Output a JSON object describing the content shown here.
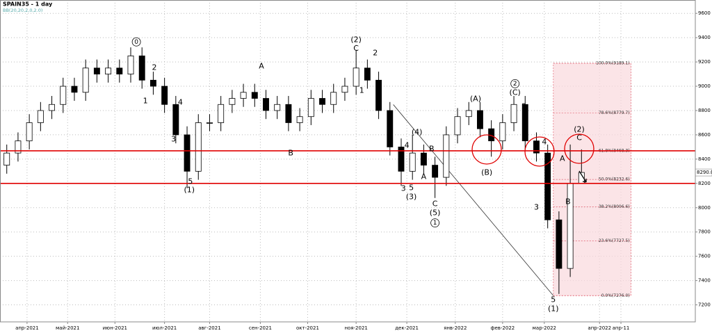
{
  "chart_data": {
    "type": "candlestick",
    "title": "SPAIN35 - 1 day",
    "subtitle": "BB(20,20,2,0,2.0)",
    "x": [
      0,
      1,
      2,
      3,
      4,
      5,
      6,
      7,
      8,
      9,
      10,
      11,
      12,
      13,
      14,
      15,
      16,
      17,
      18,
      19,
      20,
      21,
      22,
      23,
      24,
      25,
      26,
      27,
      28,
      29,
      30,
      31,
      32,
      33,
      34,
      35,
      36,
      37,
      38,
      39,
      40,
      41,
      42,
      43,
      44,
      45,
      46,
      47,
      48,
      49,
      50,
      51
    ],
    "open": [
      8350,
      8450,
      8550,
      8700,
      8800,
      8850,
      9000,
      8950,
      9150,
      9100,
      9150,
      9100,
      9250,
      9050,
      9000,
      8850,
      8600,
      8300,
      8700,
      8700,
      8850,
      8900,
      8950,
      8900,
      8800,
      8850,
      8700,
      8750,
      8900,
      8850,
      8950,
      9000,
      9150,
      9050,
      8800,
      8500,
      8300,
      8450,
      8350,
      8250,
      8600,
      8750,
      8800,
      8650,
      8550,
      8700,
      8850,
      8550,
      8450,
      7900,
      7500,
      8200
    ],
    "high": [
      8520,
      8620,
      8770,
      8870,
      8920,
      9070,
      9070,
      9220,
      9220,
      9220,
      9220,
      9320,
      9320,
      9120,
      9070,
      8920,
      8670,
      8770,
      8770,
      8920,
      8970,
      9020,
      9020,
      8970,
      8920,
      8920,
      8820,
      8970,
      8970,
      9020,
      9070,
      9300,
      9220,
      9120,
      8870,
      8570,
      8600,
      8520,
      8420,
      8670,
      8820,
      8870,
      8870,
      8720,
      8770,
      8920,
      8920,
      8620,
      8520,
      7970,
      8520,
      8480
    ],
    "low": [
      8280,
      8380,
      8480,
      8630,
      8730,
      8780,
      8880,
      8880,
      9030,
      9030,
      9030,
      9030,
      8980,
      8930,
      8780,
      8530,
      8160,
      8230,
      8630,
      8630,
      8780,
      8830,
      8830,
      8730,
      8730,
      8630,
      8630,
      8680,
      8780,
      8780,
      8880,
      8930,
      8980,
      8730,
      8430,
      8180,
      8230,
      8280,
      8080,
      8180,
      8530,
      8680,
      8580,
      8420,
      8480,
      8630,
      8480,
      8380,
      7830,
      7290,
      7430,
      8220
    ],
    "close": [
      8450,
      8550,
      8700,
      8800,
      8850,
      9000,
      8950,
      9150,
      9100,
      9150,
      9100,
      9250,
      9050,
      9000,
      8850,
      8600,
      8300,
      8700,
      8700,
      8850,
      8900,
      8950,
      8900,
      8800,
      8850,
      8700,
      8750,
      8900,
      8850,
      8950,
      9000,
      9150,
      9050,
      8800,
      8500,
      8300,
      8450,
      8350,
      8250,
      8600,
      8750,
      8800,
      8650,
      8550,
      8700,
      8850,
      8550,
      8450,
      7900,
      7500,
      8200,
      8290
    ],
    "up_color": "#ffffff",
    "down_color": "#000000",
    "wick_color": "#000000",
    "xlim": [
      -0.6,
      61.1
    ],
    "ylim": [
      7060,
      9710
    ],
    "xticks": [
      {
        "value": 1.8,
        "label": "апр-2021"
      },
      {
        "value": 5.4,
        "label": "май-2021"
      },
      {
        "value": 9.6,
        "label": "июн-2021"
      },
      {
        "value": 14,
        "label": "июл-2021"
      },
      {
        "value": 18,
        "label": "авг-2021"
      },
      {
        "value": 22.5,
        "label": "сен-2021"
      },
      {
        "value": 26.7,
        "label": "окт-2021"
      },
      {
        "value": 31,
        "label": "ноя-2021"
      },
      {
        "value": 35.5,
        "label": "дек-2021"
      },
      {
        "value": 39.8,
        "label": "янв-2022"
      },
      {
        "value": 44,
        "label": "фев-2022"
      },
      {
        "value": 47.7,
        "label": "мар-2022"
      },
      {
        "value": 52.6,
        "label": "апр-2022"
      },
      {
        "value": 54.5,
        "label": "апр-11"
      }
    ],
    "yticks": [
      7200,
      7400,
      7600,
      7800,
      8000,
      8200,
      8400,
      8600,
      8800,
      9000,
      9200,
      9400,
      9600
    ],
    "grid": true,
    "levels": [
      8468.3,
      8200
    ],
    "level_color": "#e00000",
    "last_price": {
      "value": 8290,
      "label": "8290.0"
    },
    "trendline": {
      "x": [
        34.3,
        48.5
      ],
      "y": [
        8849,
        7276
      ]
    },
    "fib_x": [
      48.5,
      55.4
    ],
    "fib_levels": [
      {
        "value": 9189.1,
        "label": "100.0%(9189.1)"
      },
      {
        "value": 8779.7,
        "label": "78.6%(8779.7)"
      },
      {
        "value": 8468.3,
        "label": "61.8%(8468.3)"
      },
      {
        "value": 8232.6,
        "label": "50.0%(8232.6)"
      },
      {
        "value": 8006.6,
        "label": "38.2%(8006.6)"
      },
      {
        "value": 7727.5,
        "label": "23.6%(7727.5)"
      },
      {
        "value": 7276.0,
        "label": "0.0%(7276.0)"
      }
    ],
    "annotations": [
      {
        "text": "0",
        "x": 11.5,
        "y": 9365,
        "circled": true
      },
      {
        "text": "2",
        "x": 13.1,
        "y": 9153
      },
      {
        "text": "1",
        "x": 12.3,
        "y": 8878
      },
      {
        "text": "3",
        "x": 14.8,
        "y": 8563
      },
      {
        "text": "4",
        "x": 15.4,
        "y": 8866
      },
      {
        "text": "5",
        "x": 16.3,
        "y": 8213
      },
      {
        "text": "(1)",
        "x": 16.2,
        "y": 8144
      },
      {
        "text": "A",
        "x": 22.6,
        "y": 9164
      },
      {
        "text": "B",
        "x": 25.2,
        "y": 8448
      },
      {
        "text": "(2)",
        "x": 31.0,
        "y": 9382
      },
      {
        "text": "C",
        "x": 31.0,
        "y": 9308
      },
      {
        "text": "2",
        "x": 32.7,
        "y": 9273
      },
      {
        "text": "1",
        "x": 31.5,
        "y": 8964
      },
      {
        "text": "(4)",
        "x": 36.4,
        "y": 8620
      },
      {
        "text": "4",
        "x": 35.5,
        "y": 8511
      },
      {
        "text": "B",
        "x": 37.7,
        "y": 8483
      },
      {
        "text": "A",
        "x": 37.0,
        "y": 8253
      },
      {
        "text": "3",
        "x": 35.2,
        "y": 8156
      },
      {
        "text": "5",
        "x": 35.9,
        "y": 8162
      },
      {
        "text": "(3)",
        "x": 35.9,
        "y": 8087
      },
      {
        "text": "C",
        "x": 38.0,
        "y": 8030
      },
      {
        "text": "(5)",
        "x": 38.0,
        "y": 7955
      },
      {
        "text": "1",
        "x": 38.0,
        "y": 7875,
        "circled": true
      },
      {
        "text": "(A)",
        "x": 41.6,
        "y": 8895
      },
      {
        "text": "2",
        "x": 45.1,
        "y": 9021,
        "circled": true
      },
      {
        "text": "(C)",
        "x": 45.1,
        "y": 8947
      },
      {
        "text": "2",
        "x": 45.9,
        "y": 8832
      },
      {
        "text": "(B)",
        "x": 42.6,
        "y": 8288
      },
      {
        "text": "4",
        "x": 47.7,
        "y": 8540
      },
      {
        "text": "3",
        "x": 47.0,
        "y": 8001
      },
      {
        "text": "A",
        "x": 49.3,
        "y": 8402
      },
      {
        "text": "B",
        "x": 49.8,
        "y": 8047
      },
      {
        "text": "(2)",
        "x": 50.8,
        "y": 8643
      },
      {
        "text": "C",
        "x": 50.8,
        "y": 8574
      },
      {
        "text": "5",
        "x": 48.5,
        "y": 7239
      },
      {
        "text": "(1)",
        "x": 48.5,
        "y": 7165
      }
    ]
  }
}
